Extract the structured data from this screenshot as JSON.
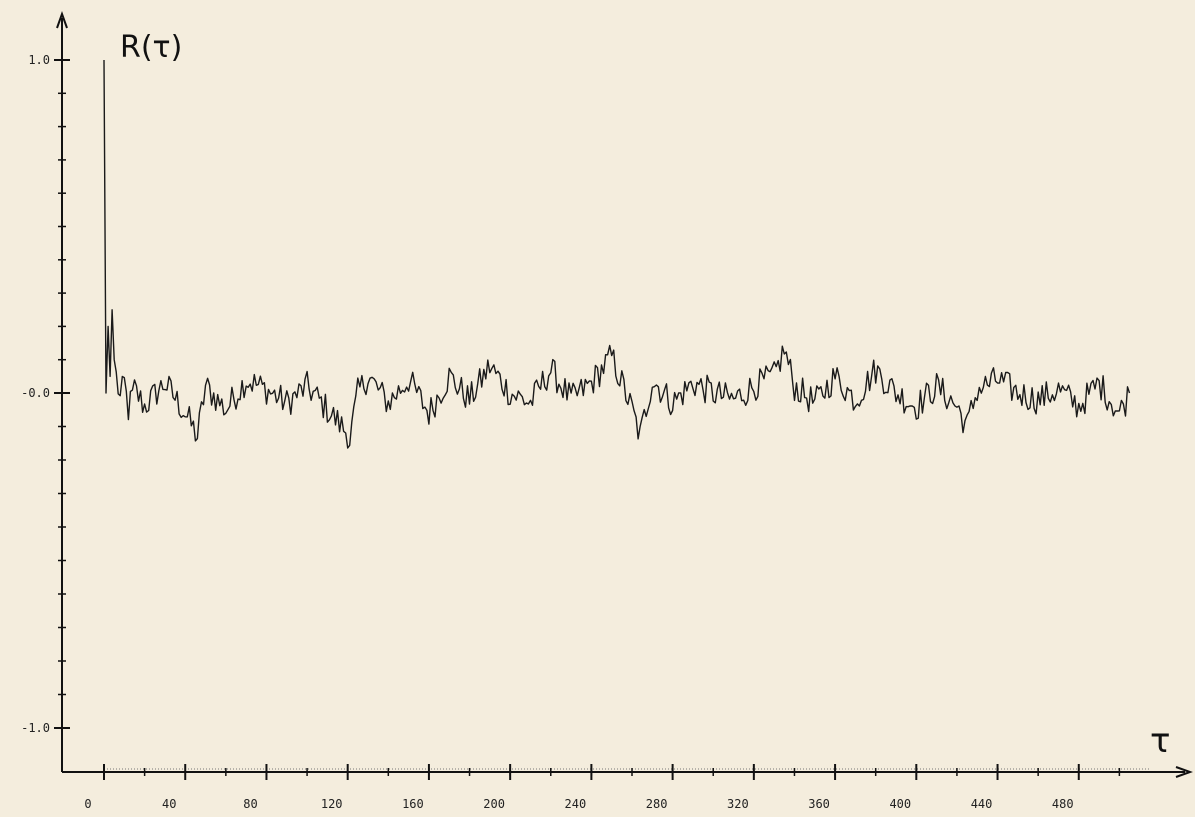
{
  "chart_data": {
    "type": "line",
    "ylabel": "R(τ)",
    "xlabel": "τ",
    "xlim": [
      0,
      520
    ],
    "ylim": [
      -1.05,
      1.12
    ],
    "x_ticks": [
      {
        "value": 0,
        "label": "0"
      },
      {
        "value": 40,
        "label": "40"
      },
      {
        "value": 80,
        "label": "80"
      },
      {
        "value": 120,
        "label": "120"
      },
      {
        "value": 160,
        "label": "160"
      },
      {
        "value": 200,
        "label": "200"
      },
      {
        "value": 240,
        "label": "240"
      },
      {
        "value": 280,
        "label": "280"
      },
      {
        "value": 320,
        "label": "320"
      },
      {
        "value": 360,
        "label": "360"
      },
      {
        "value": 400,
        "label": "400"
      },
      {
        "value": 440,
        "label": "440"
      },
      {
        "value": 480,
        "label": "480"
      }
    ],
    "y_ticks": [
      {
        "value": 1.0,
        "label": "1.0"
      },
      {
        "value": 0.0,
        "label": "-0.0"
      },
      {
        "value": -1.0,
        "label": "-1.0"
      }
    ],
    "grid": false,
    "series": [
      {
        "x": [
          0,
          1,
          2,
          3,
          4,
          5,
          6,
          8,
          10,
          12,
          15,
          20,
          30,
          40,
          46,
          50,
          60,
          70,
          80,
          90,
          100,
          110,
          120,
          121,
          125,
          130,
          140,
          150,
          160,
          170,
          180,
          190,
          200,
          210,
          220,
          230,
          240,
          250,
          260,
          264,
          270,
          280,
          290,
          300,
          310,
          320,
          330,
          335,
          340,
          350,
          360,
          370,
          380,
          390,
          400,
          410,
          420,
          425,
          430,
          440,
          450,
          460,
          470,
          480,
          490,
          500,
          505
        ],
        "y": [
          1.0,
          0.0,
          0.2,
          0.05,
          0.25,
          0.1,
          0.05,
          -0.02,
          0.03,
          -0.05,
          0.01,
          -0.04,
          0.03,
          -0.06,
          -0.13,
          0.02,
          -0.05,
          0.04,
          0.01,
          -0.03,
          0.02,
          -0.05,
          -0.12,
          -0.14,
          0.0,
          0.05,
          -0.03,
          0.04,
          -0.06,
          0.05,
          -0.02,
          0.08,
          0.0,
          -0.03,
          0.07,
          -0.02,
          0.03,
          0.11,
          -0.05,
          -0.13,
          0.04,
          -0.03,
          0.03,
          0.0,
          -0.02,
          0.02,
          0.05,
          0.13,
          0.02,
          -0.03,
          0.05,
          -0.02,
          0.07,
          0.0,
          -0.04,
          0.02,
          -0.04,
          -0.1,
          0.01,
          0.04,
          0.0,
          -0.02,
          0.01,
          -0.04,
          0.03,
          -0.06,
          0.0
        ]
      }
    ]
  }
}
